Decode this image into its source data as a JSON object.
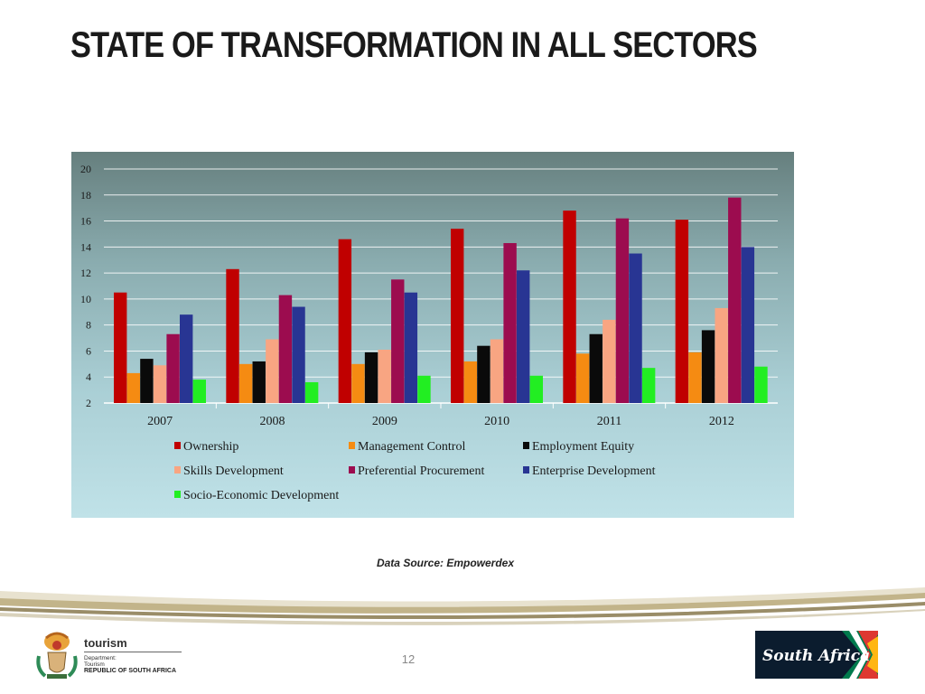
{
  "title": "STATE OF TRANSFORMATION IN ALL SECTORS",
  "source": "Data Source: Empowerdex",
  "page_number": "12",
  "footer": {
    "dept_name": "tourism",
    "dept_line1": "Department:",
    "dept_line2": "Tourism",
    "dept_line3": "REPUBLIC OF SOUTH AFRICA",
    "brand_logo_text": "South Africa"
  },
  "chart_data": {
    "type": "bar",
    "title": "",
    "xlabel": "",
    "ylabel": "",
    "categories": [
      "2007",
      "2008",
      "2009",
      "2010",
      "2011",
      "2012"
    ],
    "ylim": [
      2,
      20
    ],
    "yticks": [
      2,
      4,
      6,
      8,
      10,
      12,
      14,
      16,
      18,
      20
    ],
    "grid": true,
    "legend_position": "bottom",
    "series": [
      {
        "name": "Ownership",
        "color": "#c00000",
        "values": [
          10.5,
          12.3,
          14.6,
          15.4,
          16.8,
          16.1
        ]
      },
      {
        "name": "Management Control",
        "color": "#f58b12",
        "values": [
          4.3,
          5.0,
          5.0,
          5.2,
          5.8,
          5.9
        ]
      },
      {
        "name": "Employment Equity",
        "color": "#0a0a0a",
        "values": [
          5.4,
          5.2,
          5.9,
          6.4,
          7.3,
          7.6
        ]
      },
      {
        "name": "Skills Development",
        "color": "#f8a582",
        "values": [
          4.9,
          6.9,
          6.1,
          6.9,
          8.4,
          9.3
        ]
      },
      {
        "name": "Preferential Procurement",
        "color": "#9c0c4f",
        "values": [
          7.3,
          10.3,
          11.5,
          14.3,
          16.2,
          17.8
        ]
      },
      {
        "name": "Enterprise Development",
        "color": "#283593",
        "values": [
          8.8,
          9.4,
          10.5,
          12.2,
          13.5,
          14.0
        ]
      },
      {
        "name": "Socio-Economic Development",
        "color": "#22ee22",
        "values": [
          3.8,
          3.6,
          4.1,
          4.1,
          4.7,
          4.8
        ]
      }
    ]
  }
}
